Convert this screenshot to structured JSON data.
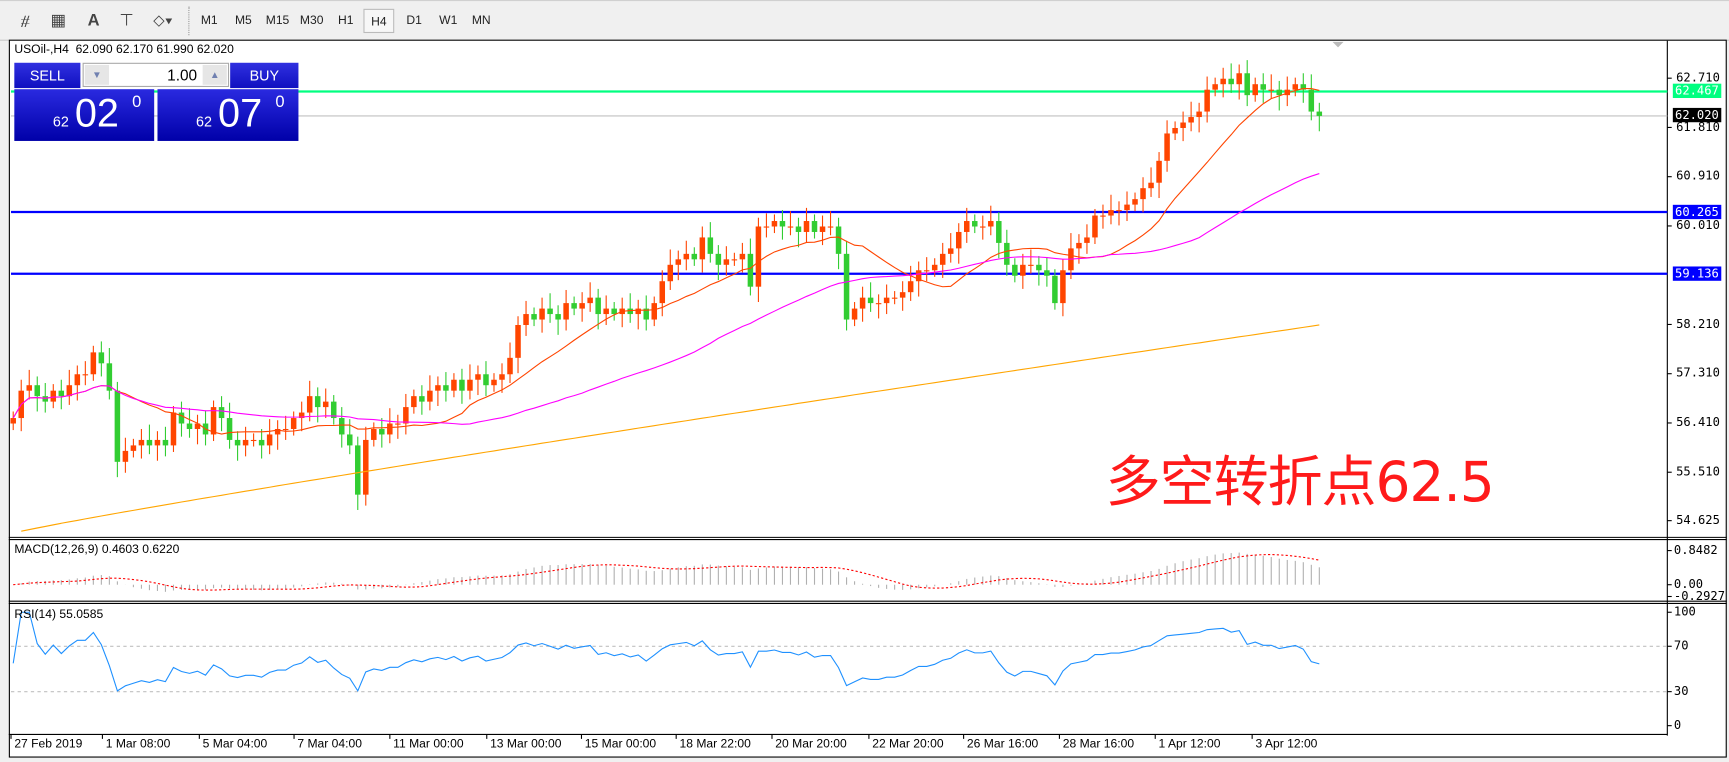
{
  "toolbar": {
    "icons": [
      "elliott-wave-icon",
      "fibonacci-grid-icon",
      "text-icon",
      "text-label-icon",
      "arrows-icon"
    ],
    "timeframes": [
      "M1",
      "M5",
      "M15",
      "M30",
      "H1",
      "H4",
      "D1",
      "W1",
      "MN"
    ],
    "active_timeframe": "H4"
  },
  "chart": {
    "header": "USOil-,H4  62.090 62.170 61.990 62.020",
    "symbol": "USOil-",
    "period": "H4",
    "ohlc": {
      "open": "62.090",
      "high": "62.170",
      "low": "61.990",
      "close": "62.020"
    },
    "annotation": "多空转折点62.5",
    "colors": {
      "up": "#ff4500",
      "down": "#32cd32",
      "ma_fast": "#ff4500",
      "ma_mid": "#ff00ff",
      "ma_slow": "#ffa500",
      "level": "#0000ff",
      "alert": "#00ff80",
      "bid": "#c0c0c0"
    }
  },
  "trade_panel": {
    "sell_label": "SELL",
    "buy_label": "BUY",
    "volume": "1.00",
    "sell_price": {
      "prefix": "62",
      "big": "02",
      "sup": "0"
    },
    "buy_price": {
      "prefix": "62",
      "big": "07",
      "sup": "0"
    }
  },
  "price_axis": {
    "ticks": [
      "62.710",
      "61.810",
      "60.910",
      "60.010",
      "58.210",
      "57.310",
      "56.410",
      "55.510",
      "54.625"
    ],
    "tags": [
      {
        "value": "62.467",
        "kind": "alert"
      },
      {
        "value": "62.020",
        "kind": "bid"
      },
      {
        "value": "60.265",
        "kind": "level"
      },
      {
        "value": "59.136",
        "kind": "level"
      }
    ]
  },
  "macd": {
    "label": "MACD(12,26,9) 0.4603 0.6220",
    "ticks": [
      "0.8482",
      "0.00",
      "-0.2927"
    ]
  },
  "rsi": {
    "label": "RSI(14) 55.0585",
    "ticks": [
      "100",
      "70",
      "30",
      "0"
    ],
    "levels": [
      70,
      30
    ]
  },
  "time_axis": [
    "27 Feb 2019",
    "1 Mar 08:00",
    "5 Mar 04:00",
    "7 Mar 04:00",
    "11 Mar 00:00",
    "13 Mar 00:00",
    "15 Mar 00:00",
    "18 Mar 22:00",
    "20 Mar 20:00",
    "22 Mar 20:00",
    "26 Mar 16:00",
    "28 Mar 16:00",
    "1 Apr 12:00",
    "3 Apr 12:00"
  ],
  "chart_data": {
    "type": "candlestick",
    "ylim": [
      54.4,
      63.4
    ],
    "closes": [
      56.5,
      57.0,
      57.1,
      56.9,
      56.8,
      57.0,
      56.9,
      57.1,
      57.3,
      57.3,
      57.7,
      57.5,
      57.0,
      55.7,
      55.9,
      56.0,
      56.1,
      56.0,
      56.1,
      56.0,
      56.6,
      56.4,
      56.3,
      56.4,
      56.2,
      56.7,
      56.5,
      56.1,
      56.0,
      56.1,
      56.1,
      56.0,
      56.2,
      56.3,
      56.3,
      56.5,
      56.6,
      56.9,
      56.7,
      56.8,
      56.5,
      56.2,
      56.0,
      55.1,
      56.1,
      56.3,
      56.2,
      56.4,
      56.4,
      56.7,
      56.9,
      56.8,
      57.0,
      57.1,
      57.0,
      57.2,
      57.0,
      57.2,
      57.3,
      57.1,
      57.2,
      57.3,
      57.6,
      58.2,
      58.4,
      58.3,
      58.5,
      58.4,
      58.3,
      58.6,
      58.5,
      58.6,
      58.7,
      58.4,
      58.5,
      58.4,
      58.5,
      58.4,
      58.5,
      58.3,
      58.6,
      59.0,
      59.3,
      59.4,
      59.5,
      59.4,
      59.8,
      59.5,
      59.3,
      59.4,
      59.4,
      59.5,
      58.9,
      60.0,
      60.0,
      60.1,
      60.0,
      60.0,
      59.9,
      60.1,
      59.9,
      60.0,
      60.0,
      59.5,
      58.3,
      58.5,
      58.7,
      58.6,
      58.6,
      58.7,
      58.7,
      58.8,
      59.0,
      59.2,
      59.2,
      59.3,
      59.5,
      59.6,
      59.9,
      60.1,
      60.0,
      60.0,
      60.1,
      59.7,
      59.3,
      59.1,
      59.3,
      59.3,
      59.2,
      59.1,
      58.6,
      59.2,
      59.6,
      59.7,
      59.8,
      60.2,
      60.2,
      60.3,
      60.3,
      60.4,
      60.5,
      60.7,
      60.8,
      61.2,
      61.7,
      61.8,
      61.9,
      62.0,
      62.1,
      62.5,
      62.6,
      62.7,
      62.6,
      62.8,
      62.4,
      62.6,
      62.5,
      62.5,
      62.4,
      62.5,
      62.6,
      62.5,
      62.1,
      62.02
    ],
    "ma_slow_range": [
      54.4,
      58.2
    ],
    "hlines": [
      62.467,
      62.02,
      60.265,
      59.136
    ]
  }
}
